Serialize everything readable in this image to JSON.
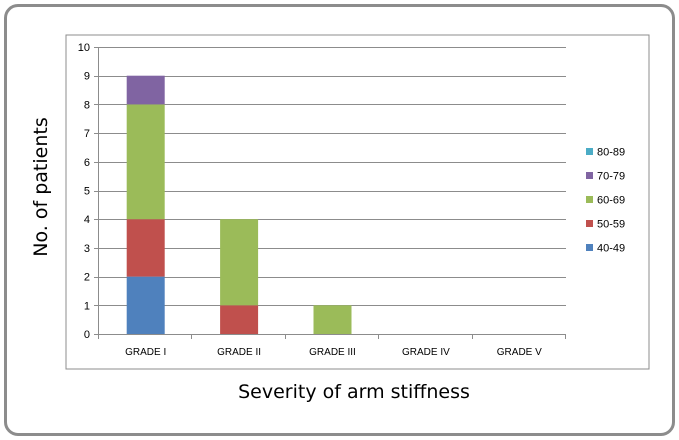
{
  "chart_data": {
    "type": "bar",
    "stacked": true,
    "categories": [
      "GRADE I",
      "GRADE II",
      "GRADE III",
      "GRADE IV",
      "GRADE V"
    ],
    "series": [
      {
        "name": "40-49",
        "color": "#4F81BD",
        "values": [
          2,
          0,
          0,
          0,
          0
        ]
      },
      {
        "name": "50-59",
        "color": "#C0504D",
        "values": [
          2,
          1,
          0,
          0,
          0
        ]
      },
      {
        "name": "60-69",
        "color": "#9BBB59",
        "values": [
          4,
          3,
          1,
          0,
          0
        ]
      },
      {
        "name": "70-79",
        "color": "#8064A2",
        "values": [
          1,
          0,
          0,
          0,
          0
        ]
      },
      {
        "name": "80-89",
        "color": "#4BACC6",
        "values": [
          0,
          0,
          0,
          0,
          0
        ]
      }
    ],
    "xlabel": "Severity of arm stiffness",
    "ylabel": "No. of patients",
    "ylim": [
      0,
      10
    ],
    "yticks": [
      "0",
      "1",
      "2",
      "3",
      "4",
      "5",
      "6",
      "7",
      "8",
      "9",
      "10"
    ],
    "grid": true,
    "legend_position": "right"
  }
}
